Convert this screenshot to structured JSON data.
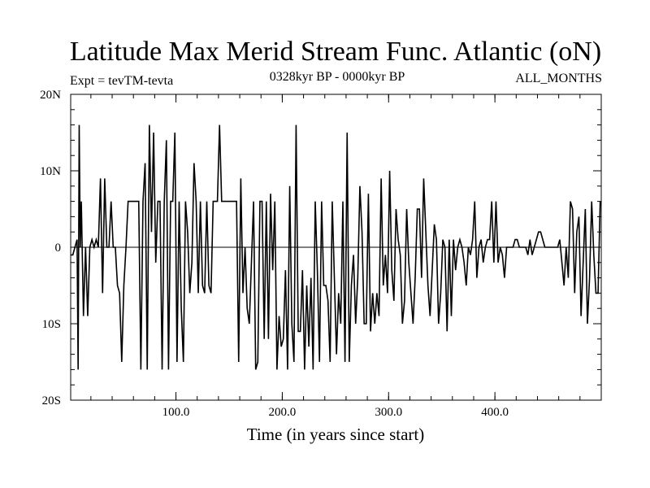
{
  "chart_data": {
    "type": "line",
    "title": "Latitude Max Merid Stream Func. Atlantic (oN)",
    "subtitle_left": "Expt = tevTM-tevta",
    "subtitle_center": "0328kyr BP - 0000kyr BP",
    "subtitle_right": "ALL_MONTHS",
    "xlabel": "Time (in years since start)",
    "ylabel": "",
    "xlim": [
      1,
      500
    ],
    "ylim": [
      -20,
      20
    ],
    "xticks": [
      100,
      200,
      300,
      400
    ],
    "xtick_labels": [
      "100.0",
      "200.0",
      "300.0",
      "400.0"
    ],
    "yticks": [
      -20,
      -10,
      0,
      10,
      20
    ],
    "ytick_labels": [
      "20S",
      "10S",
      "0",
      "10N",
      "20N"
    ],
    "grid": false,
    "reference_line_y": 0,
    "series": [
      {
        "color": "#000000",
        "x": [
          1,
          3,
          5,
          7,
          8,
          9,
          10,
          11,
          13,
          15,
          17,
          19,
          21,
          23,
          25,
          27,
          29,
          31,
          33,
          35,
          37,
          39,
          41,
          43,
          45,
          47,
          49,
          51,
          53,
          55,
          57,
          59,
          61,
          63,
          65,
          67,
          69,
          71,
          73,
          75,
          77,
          79,
          81,
          83,
          85,
          87,
          89,
          91,
          93,
          95,
          97,
          99,
          101,
          103,
          105,
          107,
          109,
          111,
          113,
          115,
          117,
          119,
          121,
          123,
          125,
          127,
          129,
          131,
          133,
          135,
          137,
          139,
          141,
          143,
          145,
          147,
          149,
          151,
          153,
          155,
          157,
          159,
          161,
          163,
          165,
          167,
          169,
          171,
          173,
          175,
          177,
          179,
          181,
          183,
          185,
          187,
          189,
          191,
          193,
          195,
          197,
          199,
          201,
          203,
          205,
          207,
          209,
          211,
          213,
          215,
          217,
          219,
          221,
          223,
          225,
          227,
          229,
          231,
          233,
          235,
          237,
          239,
          241,
          243,
          245,
          247,
          249,
          251,
          253,
          255,
          257,
          259,
          261,
          263,
          265,
          267,
          269,
          271,
          273,
          275,
          277,
          279,
          281,
          283,
          285,
          287,
          289,
          291,
          293,
          295,
          297,
          299,
          301,
          303,
          305,
          307,
          309,
          311,
          313,
          315,
          317,
          319,
          321,
          323,
          325,
          327,
          329,
          331,
          333,
          335,
          337,
          339,
          341,
          343,
          345,
          347,
          349,
          351,
          353,
          355,
          357,
          359,
          361,
          363,
          365,
          367,
          369,
          371,
          373,
          375,
          377,
          379,
          381,
          383,
          385,
          387,
          389,
          391,
          393,
          395,
          397,
          399,
          401,
          403,
          405,
          407,
          409,
          411,
          413,
          415,
          417,
          419,
          421,
          423,
          425,
          427,
          429,
          431,
          433,
          435,
          437,
          439,
          441,
          443,
          445,
          447,
          449,
          451,
          453,
          455,
          457,
          459,
          461,
          463,
          465,
          467,
          469,
          471,
          473,
          475,
          477,
          479,
          481,
          483,
          485,
          487,
          489,
          491,
          493,
          495,
          497,
          499
        ],
        "y": [
          -1,
          -1,
          0,
          1,
          -16,
          16,
          0,
          6,
          -9,
          0,
          -9,
          0,
          1,
          0,
          1,
          0,
          9,
          -6,
          9,
          0,
          0,
          6,
          0,
          0,
          -5,
          -6,
          -15,
          -5,
          0,
          6,
          6,
          6,
          6,
          6,
          6,
          -16,
          6,
          11,
          -16,
          16,
          2,
          15,
          -2,
          6,
          6,
          -16,
          6,
          14,
          -16,
          6,
          6,
          15,
          -15,
          6,
          -8,
          -15,
          6,
          2,
          -6,
          -2,
          11,
          6,
          -6,
          6,
          -5,
          -6,
          6,
          -5,
          -6,
          6,
          6,
          6,
          16,
          6,
          6,
          6,
          6,
          6,
          6,
          6,
          6,
          -15,
          9,
          -6,
          0,
          -8,
          -10,
          -2,
          6,
          -16,
          -15,
          6,
          6,
          -12,
          6,
          -12,
          7,
          -3,
          6,
          -16,
          -9,
          -13,
          -12,
          -3,
          -16,
          8,
          -10,
          -15,
          16,
          -11,
          -11,
          -3,
          -16,
          -5,
          -13,
          -4,
          -16,
          6,
          -3,
          -15,
          6,
          -5,
          -5,
          -7,
          -15,
          6,
          -4,
          -14,
          -6,
          -10,
          6,
          -15,
          15,
          -15,
          -5,
          -1,
          -10,
          -4,
          8,
          2,
          -10,
          -10,
          7,
          -11,
          -6,
          -10,
          -6,
          -9,
          9,
          -5,
          -1,
          -6,
          10,
          -3,
          -7,
          5,
          1,
          -1,
          -10,
          -7,
          5,
          -2,
          -6,
          -10,
          -4,
          5,
          5,
          -4,
          9,
          2,
          -5,
          -9,
          -3,
          3,
          1,
          -10,
          -6,
          1,
          0,
          -11,
          1,
          -9,
          1,
          -3,
          0,
          1,
          0,
          -2,
          -5,
          0,
          -1,
          1,
          6,
          -4,
          0,
          1,
          -2,
          0,
          1,
          1,
          6,
          -2,
          6,
          -2,
          0,
          -1,
          -4,
          0,
          0,
          0,
          0,
          1,
          1,
          0,
          0,
          0,
          0,
          -1,
          1,
          -1,
          0,
          1,
          2,
          2,
          1,
          0,
          0,
          0,
          0,
          0,
          0,
          0,
          1,
          -2,
          -5,
          0,
          -4,
          6,
          5,
          -6,
          2,
          4,
          -9,
          -2,
          5,
          -10,
          -4,
          6,
          -1,
          -6,
          -6,
          6
        ]
      }
    ]
  }
}
